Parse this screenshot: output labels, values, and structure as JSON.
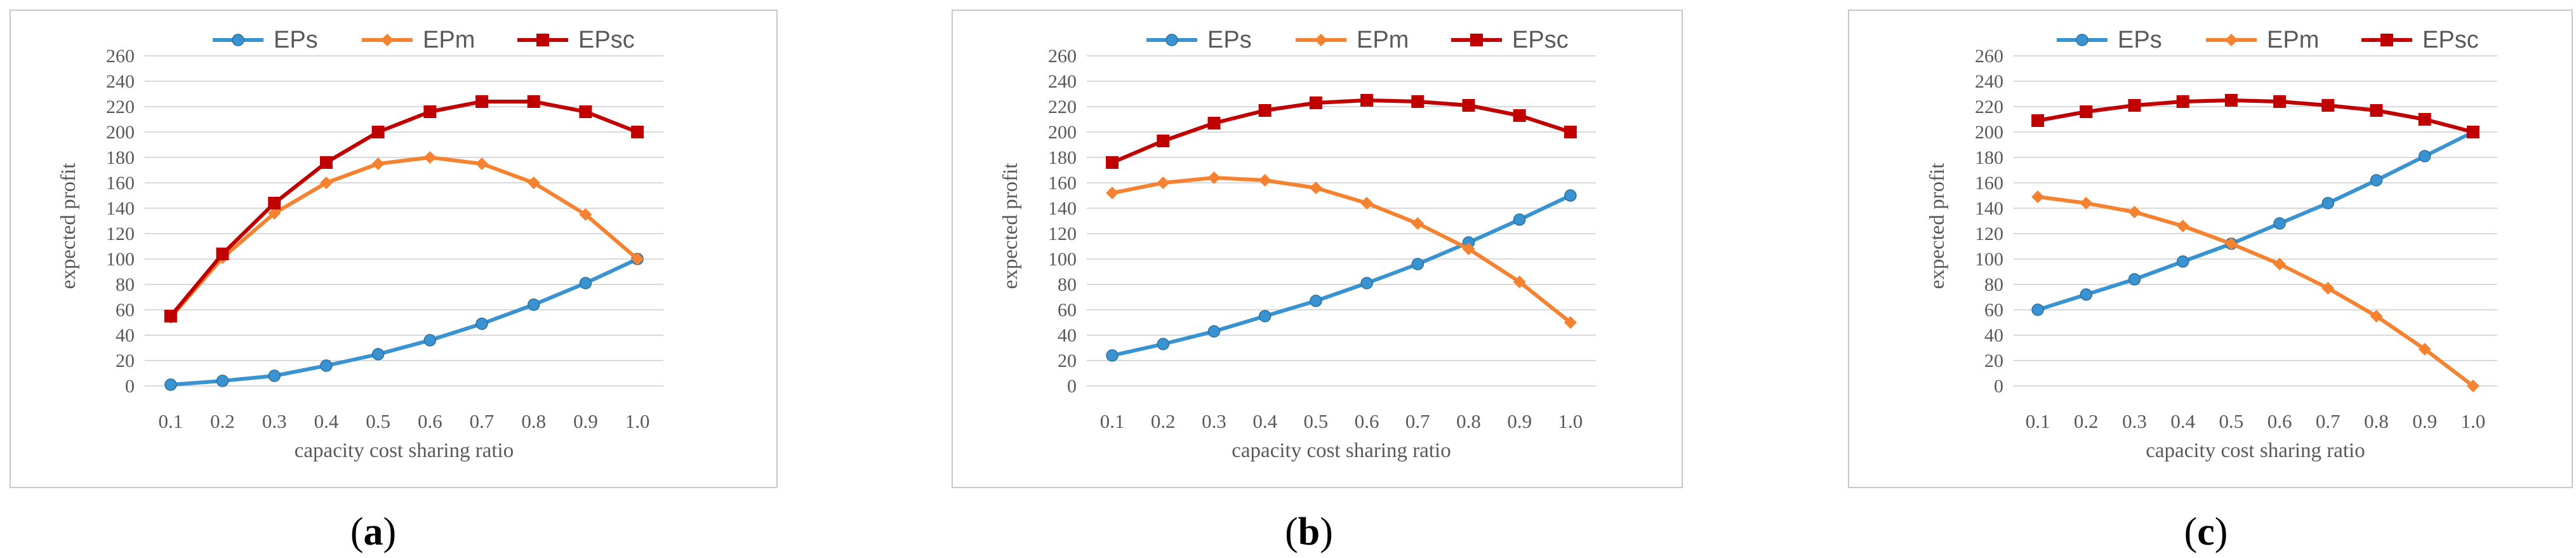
{
  "colors": {
    "EPs": "#3a93d1",
    "EPm": "#f58230",
    "EPsc": "#c00000",
    "grid": "#d9d9d9",
    "frame": "#c8c8c8",
    "text": "#595959"
  },
  "chart_data": [
    {
      "type": "line",
      "panel_label": "a",
      "xlabel": "capacity  cost  sharing  ratio",
      "ylabel": "expected  profit",
      "categories": [
        "0.1",
        "0.2",
        "0.3",
        "0.4",
        "0.5",
        "0.6",
        "0.7",
        "0.8",
        "0.9",
        "1.0"
      ],
      "yticks": [
        0,
        20,
        40,
        60,
        80,
        100,
        120,
        140,
        160,
        180,
        200,
        220,
        240,
        260
      ],
      "ylim": [
        0,
        260
      ],
      "grid": true,
      "legend": "top",
      "series": [
        {
          "name": "EPs",
          "marker": "circle",
          "values": [
            1,
            4,
            8,
            16,
            25,
            36,
            49,
            64,
            81,
            100
          ]
        },
        {
          "name": "EPm",
          "marker": "diamond",
          "values": [
            54,
            101,
            136,
            160,
            175,
            180,
            175,
            160,
            135,
            100
          ]
        },
        {
          "name": "EPsc",
          "marker": "square",
          "values": [
            55,
            104,
            144,
            176,
            200,
            216,
            224,
            224,
            216,
            200
          ]
        }
      ]
    },
    {
      "type": "line",
      "panel_label": "b",
      "xlabel": "capacity  cost  sharing  ratio",
      "ylabel": "expected  profit",
      "categories": [
        "0.1",
        "0.2",
        "0.3",
        "0.4",
        "0.5",
        "0.6",
        "0.7",
        "0.8",
        "0.9",
        "1.0"
      ],
      "yticks": [
        0,
        20,
        40,
        60,
        80,
        100,
        120,
        140,
        160,
        180,
        200,
        220,
        240,
        260
      ],
      "ylim": [
        0,
        260
      ],
      "grid": true,
      "legend": "top",
      "series": [
        {
          "name": "EPs",
          "marker": "circle",
          "values": [
            24,
            33,
            43,
            55,
            67,
            81,
            96,
            113,
            131,
            150
          ]
        },
        {
          "name": "EPm",
          "marker": "diamond",
          "values": [
            152,
            160,
            164,
            162,
            156,
            144,
            128,
            108,
            82,
            50
          ]
        },
        {
          "name": "EPsc",
          "marker": "square",
          "values": [
            176,
            193,
            207,
            217,
            223,
            225,
            224,
            221,
            213,
            200
          ]
        }
      ]
    },
    {
      "type": "line",
      "panel_label": "c",
      "xlabel": "capacity  cost  sharing  ratio",
      "ylabel": "expected  profit",
      "categories": [
        "0.1",
        "0.2",
        "0.3",
        "0.4",
        "0.5",
        "0.6",
        "0.7",
        "0.8",
        "0.9",
        "1.0"
      ],
      "yticks": [
        0,
        20,
        40,
        60,
        80,
        100,
        120,
        140,
        160,
        180,
        200,
        220,
        240,
        260
      ],
      "ylim": [
        0,
        260
      ],
      "grid": true,
      "legend": "top",
      "series": [
        {
          "name": "EPs",
          "marker": "circle",
          "values": [
            60,
            72,
            84,
            98,
            112,
            128,
            144,
            162,
            181,
            200
          ]
        },
        {
          "name": "EPm",
          "marker": "diamond",
          "values": [
            149,
            144,
            137,
            126,
            112,
            96,
            77,
            55,
            29,
            0
          ]
        },
        {
          "name": "EPsc",
          "marker": "square",
          "values": [
            209,
            216,
            221,
            224,
            225,
            224,
            221,
            217,
            210,
            200
          ]
        }
      ]
    }
  ]
}
